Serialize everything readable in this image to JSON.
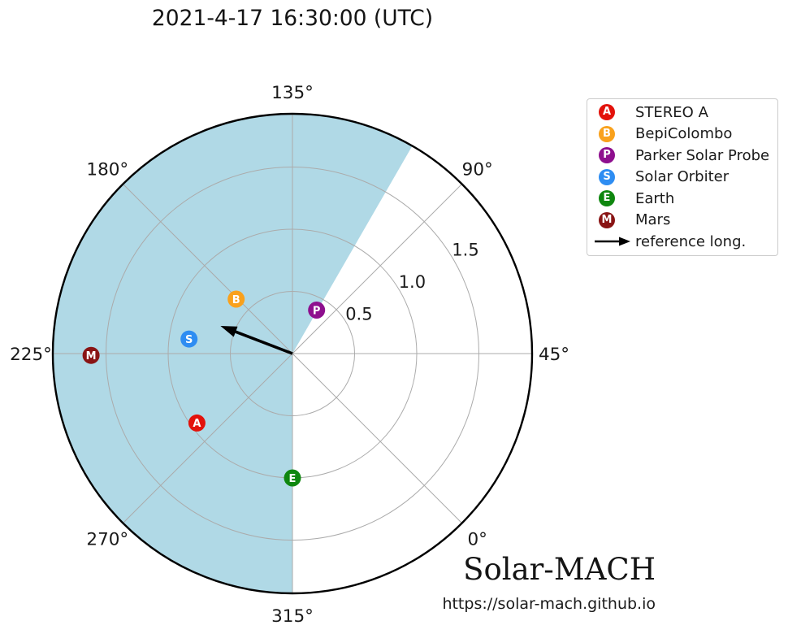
{
  "title": "2021-4-17 16:30:00 (UTC)",
  "watermark": {
    "name": "Solar-MACH",
    "url": "https://solar-mach.github.io"
  },
  "legend": {
    "items": [
      {
        "letter": "A",
        "label": "STEREO A",
        "color": "#e3120b"
      },
      {
        "letter": "B",
        "label": "BepiColombo",
        "color": "#f9a11c"
      },
      {
        "letter": "P",
        "label": "Parker Solar Probe",
        "color": "#8e0f8e"
      },
      {
        "letter": "S",
        "label": "Solar Orbiter",
        "color": "#2e8df2"
      },
      {
        "letter": "E",
        "label": "Earth",
        "color": "#0f870f"
      },
      {
        "letter": "M",
        "label": "Mars",
        "color": "#891414"
      }
    ],
    "arrow_label": "reference long."
  },
  "chart_data": {
    "type": "scatter",
    "subtype": "polar",
    "title": "2021-4-17 16:30:00 (UTC)",
    "units": "AU",
    "rotation_offset_deg": 45,
    "angular_ticks_deg": [
      0,
      45,
      90,
      135,
      180,
      225,
      270,
      315
    ],
    "radial_ticks_au": [
      0.5,
      1.0,
      1.5
    ],
    "r_max_au": 1.93,
    "grid": true,
    "bodies": [
      {
        "name": "STEREO A",
        "letter": "A",
        "color": "#e3120b",
        "longitude_deg": 261,
        "r_au": 0.95
      },
      {
        "name": "BepiColombo",
        "letter": "B",
        "color": "#f9a11c",
        "longitude_deg": 181,
        "r_au": 0.63
      },
      {
        "name": "Parker Solar Probe",
        "letter": "P",
        "color": "#8e0f8e",
        "longitude_deg": 106,
        "r_au": 0.4
      },
      {
        "name": "Solar Orbiter",
        "letter": "S",
        "color": "#2e8df2",
        "longitude_deg": 217,
        "r_au": 0.84
      },
      {
        "name": "Earth",
        "letter": "E",
        "color": "#0f870f",
        "longitude_deg": 315,
        "r_au": 1.0
      },
      {
        "name": "Mars",
        "letter": "M",
        "color": "#891414",
        "longitude_deg": 225.5,
        "r_au": 1.62
      }
    ],
    "reference_arrow": {
      "longitude_deg": 204,
      "length_au": 0.62,
      "color": "#000000"
    },
    "shaded_sector": {
      "from_deg": 105,
      "to_deg": 315,
      "color": "#b0d9e6"
    }
  }
}
